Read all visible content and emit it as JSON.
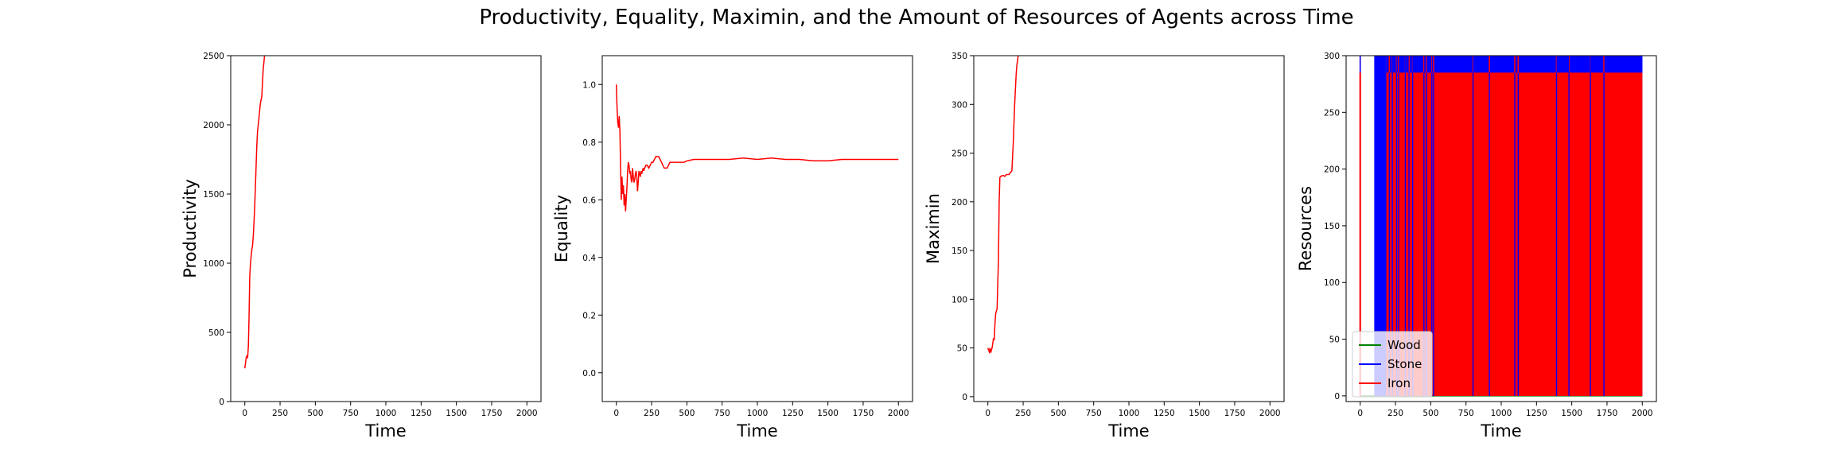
{
  "figure": {
    "title": "Productivity, Equality, Maximin, and the Amount of Resources of Agents across Time"
  },
  "chart_data": [
    {
      "type": "line",
      "xlabel": "Time",
      "ylabel": "Productivity",
      "xlim": [
        -100,
        2100
      ],
      "ylim": [
        0,
        2500
      ],
      "xticks": [
        "0",
        "250",
        "500",
        "750",
        "1000",
        "1250",
        "1500",
        "1750",
        "2000"
      ],
      "yticks": [
        "0",
        "500",
        "1000",
        "1500",
        "2000",
        "2500"
      ],
      "series": [
        {
          "color": "#ff0000",
          "x": [
            0,
            5,
            10,
            15,
            20,
            25,
            30,
            35,
            40,
            45,
            50,
            55,
            60,
            65,
            70,
            75,
            80,
            85,
            90,
            95,
            100,
            105,
            110,
            115,
            120,
            125,
            130,
            135,
            140,
            145,
            150,
            155
          ],
          "y": [
            240,
            280,
            320,
            330,
            320,
            400,
            600,
            900,
            1000,
            1050,
            1100,
            1130,
            1200,
            1300,
            1400,
            1550,
            1700,
            1850,
            1950,
            2000,
            2050,
            2100,
            2150,
            2180,
            2200,
            2300,
            2400,
            2450,
            2500,
            2550,
            2600,
            2650
          ]
        }
      ]
    },
    {
      "type": "line",
      "xlabel": "Time",
      "ylabel": "Equality",
      "xlim": [
        -100,
        2100
      ],
      "ylim": [
        -0.1,
        1.1
      ],
      "xticks": [
        "0",
        "250",
        "500",
        "750",
        "1000",
        "1250",
        "1500",
        "1750",
        "2000"
      ],
      "yticks": [
        "0.0",
        "0.2",
        "0.4",
        "0.6",
        "0.8",
        "1.0"
      ],
      "series": [
        {
          "color": "#ff0000",
          "x": [
            0,
            5,
            10,
            15,
            20,
            25,
            30,
            35,
            40,
            45,
            50,
            55,
            60,
            65,
            70,
            75,
            80,
            85,
            90,
            95,
            100,
            105,
            110,
            115,
            120,
            125,
            130,
            135,
            140,
            145,
            150,
            155,
            160,
            165,
            170,
            175,
            180,
            185,
            190,
            195,
            200,
            210,
            220,
            230,
            240,
            250,
            260,
            270,
            280,
            290,
            300,
            310,
            320,
            330,
            340,
            350,
            360,
            370,
            380,
            390,
            400,
            420,
            440,
            460,
            480,
            500,
            550,
            600,
            700,
            800,
            900,
            1000,
            1100,
            1200,
            1300,
            1400,
            1500,
            1600,
            1700,
            1800,
            1900,
            2000
          ],
          "y": [
            1.0,
            0.92,
            0.87,
            0.85,
            0.89,
            0.84,
            0.72,
            0.6,
            0.68,
            0.62,
            0.65,
            0.58,
            0.62,
            0.56,
            0.6,
            0.64,
            0.7,
            0.73,
            0.72,
            0.69,
            0.7,
            0.67,
            0.66,
            0.71,
            0.68,
            0.66,
            0.67,
            0.69,
            0.7,
            0.68,
            0.63,
            0.66,
            0.7,
            0.69,
            0.68,
            0.7,
            0.69,
            0.7,
            0.71,
            0.7,
            0.71,
            0.72,
            0.72,
            0.71,
            0.72,
            0.73,
            0.73,
            0.74,
            0.75,
            0.75,
            0.75,
            0.74,
            0.73,
            0.72,
            0.71,
            0.71,
            0.71,
            0.72,
            0.73,
            0.73,
            0.73,
            0.73,
            0.73,
            0.73,
            0.73,
            0.735,
            0.74,
            0.74,
            0.74,
            0.74,
            0.745,
            0.74,
            0.745,
            0.74,
            0.74,
            0.735,
            0.735,
            0.74,
            0.74,
            0.74,
            0.74,
            0.74
          ]
        }
      ]
    },
    {
      "type": "line",
      "xlabel": "Time",
      "ylabel": "Maximin",
      "xlim": [
        -100,
        2100
      ],
      "ylim": [
        -5,
        350
      ],
      "xticks": [
        "0",
        "250",
        "500",
        "750",
        "1000",
        "1250",
        "1500",
        "1750",
        "2000"
      ],
      "yticks": [
        "0",
        "50",
        "100",
        "150",
        "200",
        "250",
        "300",
        "350"
      ],
      "series": [
        {
          "color": "#ff0000",
          "x": [
            0,
            5,
            10,
            15,
            20,
            25,
            30,
            35,
            40,
            45,
            50,
            55,
            60,
            65,
            70,
            75,
            80,
            85,
            90,
            95,
            100,
            110,
            120,
            130,
            140,
            150,
            160,
            170,
            180,
            190,
            200,
            205,
            210,
            215,
            220,
            225,
            230
          ],
          "y": [
            50,
            48,
            46,
            50,
            45,
            48,
            50,
            55,
            60,
            58,
            75,
            85,
            88,
            90,
            115,
            140,
            200,
            225,
            226,
            226,
            227,
            227,
            226,
            228,
            228,
            228,
            230,
            232,
            260,
            300,
            330,
            340,
            345,
            350,
            352,
            355,
            360
          ]
        }
      ]
    },
    {
      "type": "line",
      "xlabel": "Time",
      "ylabel": "Resources",
      "xlim": [
        -100,
        2100
      ],
      "ylim": [
        -5,
        300
      ],
      "xticks": [
        "0",
        "250",
        "500",
        "750",
        "1000",
        "1250",
        "1500",
        "1750",
        "2000"
      ],
      "yticks": [
        "0",
        "50",
        "100",
        "150",
        "200",
        "250",
        "300"
      ],
      "legend": "lower-left",
      "series": [
        {
          "name": "Wood",
          "color": "#008000",
          "x": [
            0,
            2000
          ],
          "y": [
            0,
            0
          ]
        },
        {
          "name": "Stone",
          "color": "#0000ff",
          "x": [
            0,
            2000
          ],
          "y": [
            0,
            300
          ],
          "fill_to": 300,
          "spikes": [
            0,
            104,
            112,
            120,
            128,
            140,
            148,
            160,
            176,
            190,
            198,
            214,
            230,
            246,
            262,
            278,
            290,
            306,
            320,
            340,
            356,
            374,
            396,
            412,
            430,
            458,
            476,
            496,
            512,
            540,
            560,
            592,
            612,
            640,
            668,
            700,
            724,
            752,
            776,
            804,
            828,
            856,
            880,
            904,
            928,
            952,
            980,
            1004,
            1032,
            1060,
            1084,
            1108,
            1136,
            1160,
            1188,
            1212,
            1240,
            1264,
            1292,
            1320,
            1344,
            1368,
            1396,
            1420,
            1448,
            1476,
            1500,
            1528,
            1552,
            1580,
            1604,
            1632,
            1656,
            1684,
            1708,
            1736,
            1760,
            1788,
            1812,
            1840,
            1864,
            1892,
            1916,
            1944,
            1968,
            1996
          ]
        },
        {
          "name": "Iron",
          "color": "#ff0000",
          "x": [
            0,
            2000
          ],
          "y": [
            0,
            285
          ],
          "fill_to": 285,
          "spikes": [
            0,
            190,
            206,
            228,
            258,
            272,
            320,
            346,
            372,
            452,
            470,
            508,
            520,
            800,
            916,
            1096,
            1120,
            1392,
            1480,
            1632,
            1728
          ]
        }
      ]
    }
  ]
}
